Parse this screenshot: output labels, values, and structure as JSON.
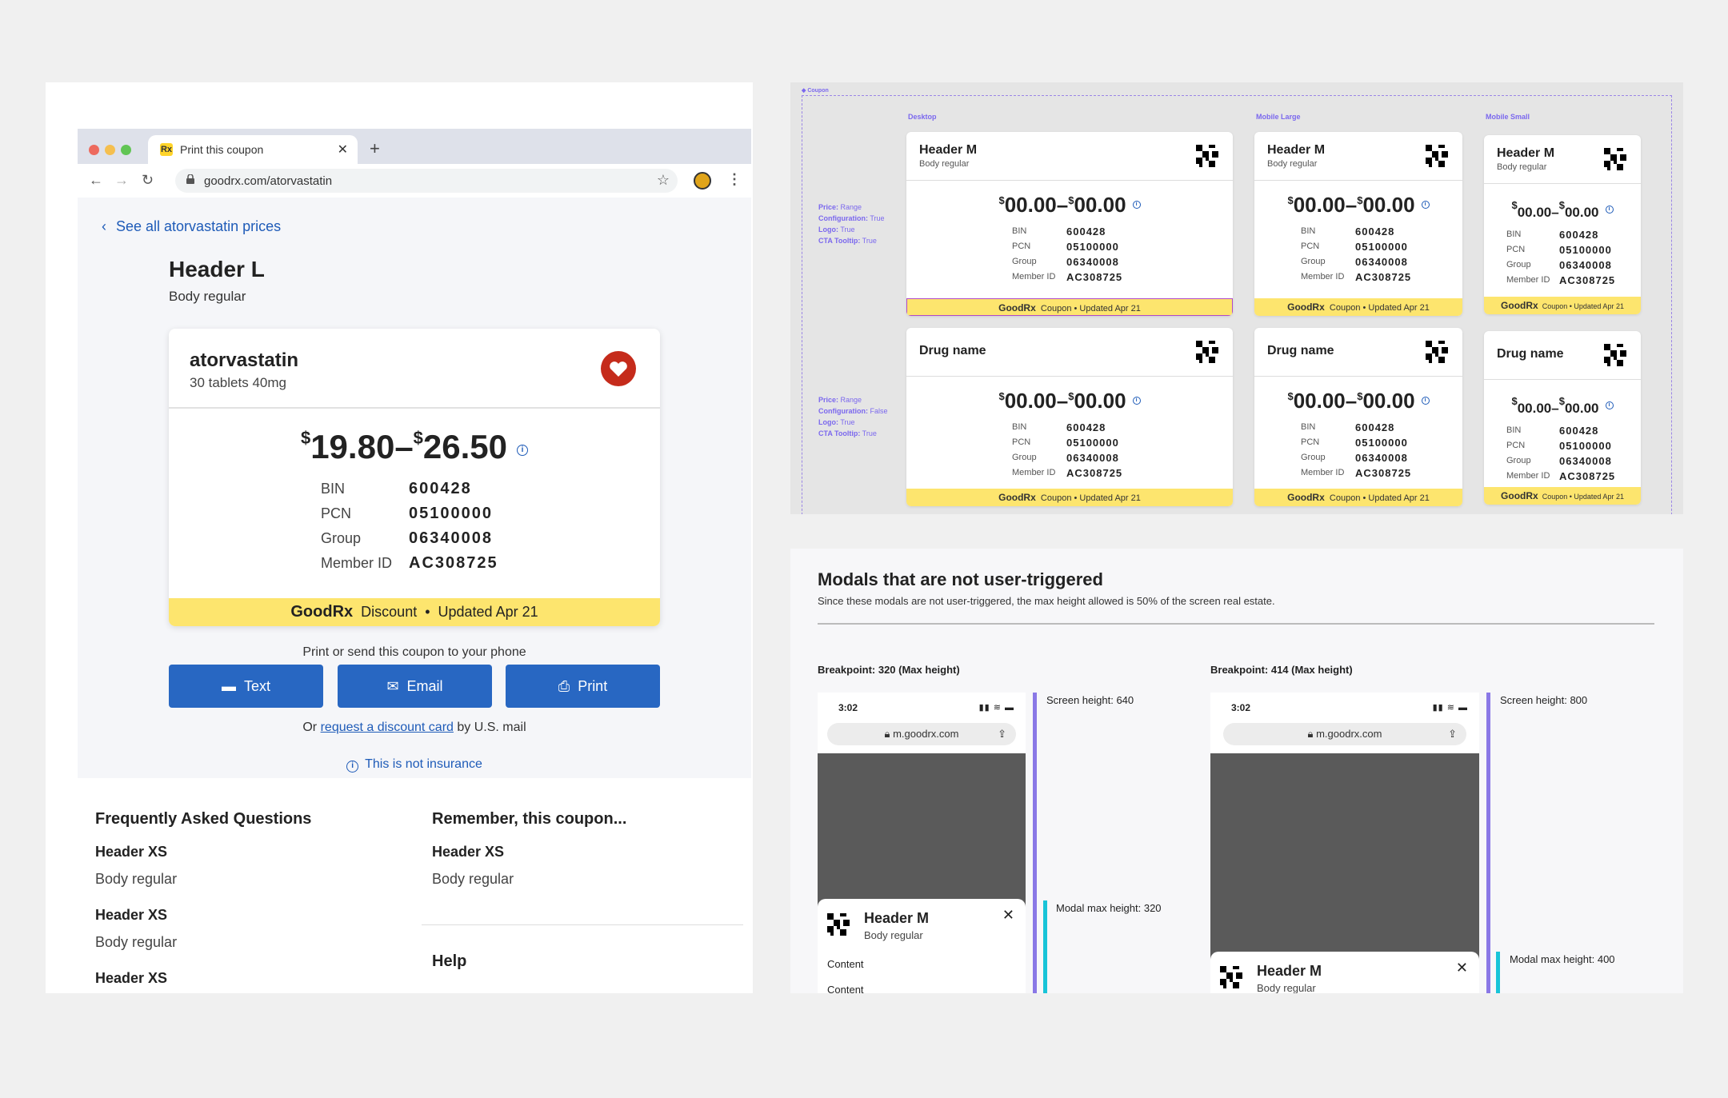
{
  "browser": {
    "tab_title": "Print this coupon",
    "tab_favicon": "Rx",
    "url": "goodrx.com/atorvastatin"
  },
  "page": {
    "back_link": "See all atorvastatin prices",
    "header": "Header L",
    "body": "Body regular",
    "coupon": {
      "drug_name": "atorvastatin",
      "drug_desc": "30 tablets 40mg",
      "price_low": "19.80",
      "price_high": "26.50",
      "currency": "$",
      "ids": [
        {
          "label": "BIN",
          "value": "600428"
        },
        {
          "label": "PCN",
          "value": "05100000"
        },
        {
          "label": "Group",
          "value": "06340008"
        },
        {
          "label": "Member ID",
          "value": "AC308725"
        }
      ],
      "footer_brand": "GoodRx",
      "footer_type": "Discount",
      "footer_updated": "Updated Apr 21"
    },
    "print_send": "Print or send this coupon to your phone",
    "buttons": {
      "text": "Text",
      "email": "Email",
      "print": "Print"
    },
    "mail_prefix": "Or",
    "mail_link": "request a discount card",
    "mail_suffix": "by U.S. mail",
    "not_insurance": "This is not insurance",
    "faq_title": "Frequently Asked Questions",
    "remember_title": "Remember, this coupon...",
    "header_xs": "Header XS",
    "help_title": "Help"
  },
  "variants": {
    "frame_label": "Coupon",
    "col_labels": [
      "Desktop",
      "Mobile Large",
      "Mobile Small"
    ],
    "props_a": [
      {
        "k": "Price:",
        "v": "Range"
      },
      {
        "k": "Configuration:",
        "v": "True"
      },
      {
        "k": "Logo:",
        "v": "True"
      },
      {
        "k": "CTA Tooltip:",
        "v": "True"
      }
    ],
    "props_b": [
      {
        "k": "Price:",
        "v": "Range"
      },
      {
        "k": "Configuration:",
        "v": "False"
      },
      {
        "k": "Logo:",
        "v": "True"
      },
      {
        "k": "CTA Tooltip:",
        "v": "True"
      }
    ],
    "header": "Header M",
    "body": "Body regular",
    "drug_name": "Drug name",
    "price": "00.00",
    "footer_brand": "GoodRx",
    "footer_type": "Coupon",
    "footer_updated": "Updated Apr 21"
  },
  "modals": {
    "title": "Modals that are not user-triggered",
    "subtitle": "Since these modals are not user-triggered, the max height allowed is 50% of the screen real estate.",
    "bp1": "Breakpoint: 320 (Max height)",
    "bp2": "Breakpoint: 414 (Max height)",
    "time": "3:02",
    "url": "m.goodrx.com",
    "header": "Header M",
    "body": "Body regular",
    "content": "Content",
    "screen1": "Screen height: 640",
    "modal1": "Modal max height: 320",
    "screen2": "Screen height: 800",
    "modal2": "Modal max height: 400"
  },
  "colors": {
    "brand_blue": "#2867c2",
    "coupon_yellow": "#fde56e",
    "heart_red": "#c52b1b",
    "annotation_purple": "#7b68ee"
  }
}
